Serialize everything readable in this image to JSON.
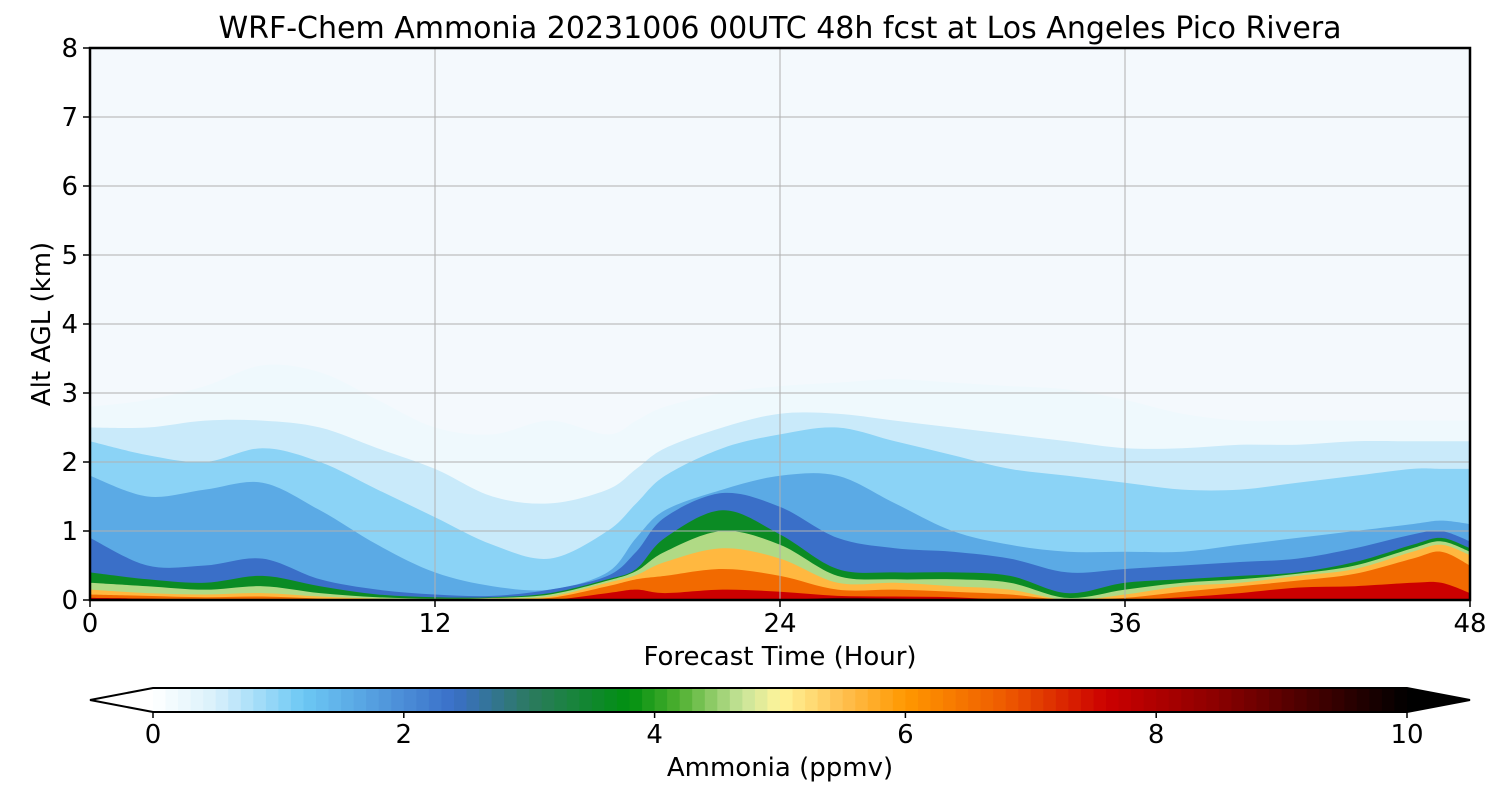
{
  "chart_data": {
    "type": "heatmap",
    "title": "WRF-Chem Ammonia  20231006 00UTC 48h fcst at Los Angeles Pico Rivera",
    "xlabel": "Forecast Time (Hour)",
    "ylabel": "Alt AGL (km)",
    "xlim": [
      0,
      48
    ],
    "ylim": [
      0,
      8
    ],
    "xticks": [
      "0",
      "12",
      "24",
      "36",
      "48"
    ],
    "yticks": [
      "0",
      "1",
      "2",
      "3",
      "4",
      "5",
      "6",
      "7",
      "8"
    ],
    "grid": true,
    "colorbar": {
      "label": "Ammonia  (ppmv)",
      "range": [
        0,
        10
      ],
      "ticks": [
        "0",
        "2",
        "4",
        "6",
        "8",
        "10"
      ],
      "extend": "both",
      "colors": [
        {
          "v": 0.0,
          "c": "#ffffff"
        },
        {
          "v": 0.5,
          "c": "#d8f0fb"
        },
        {
          "v": 1.2,
          "c": "#6cc8f4"
        },
        {
          "v": 2.4,
          "c": "#3a6fc8"
        },
        {
          "v": 3.0,
          "c": "#2c7a60"
        },
        {
          "v": 3.8,
          "c": "#009010"
        },
        {
          "v": 4.2,
          "c": "#4fb030"
        },
        {
          "v": 4.7,
          "c": "#c8e49a"
        },
        {
          "v": 5.0,
          "c": "#fff59a"
        },
        {
          "v": 5.5,
          "c": "#ffc050"
        },
        {
          "v": 6.0,
          "c": "#ff9800"
        },
        {
          "v": 6.8,
          "c": "#ee5a00"
        },
        {
          "v": 7.6,
          "c": "#cc0000"
        },
        {
          "v": 8.5,
          "c": "#8a0000"
        },
        {
          "v": 10.0,
          "c": "#000000"
        }
      ]
    },
    "contour_profiles": {
      "x_hours": [
        0,
        2,
        4,
        6,
        8,
        10,
        12,
        14,
        16,
        18,
        19,
        20,
        22,
        24,
        26,
        28,
        30,
        32,
        34,
        36,
        38,
        40,
        42,
        44,
        46,
        47,
        48
      ],
      "levels": [
        {
          "value": 0.2,
          "top_km": [
            2.8,
            2.9,
            3.1,
            3.4,
            3.3,
            2.9,
            2.5,
            2.4,
            2.6,
            2.4,
            2.6,
            2.8,
            3.0,
            3.1,
            3.15,
            3.2,
            3.15,
            3.1,
            3.05,
            2.9,
            2.7,
            2.6,
            2.6,
            2.6,
            2.6,
            2.6,
            2.6
          ]
        },
        {
          "value": 0.6,
          "top_km": [
            2.5,
            2.5,
            2.6,
            2.6,
            2.5,
            2.2,
            1.9,
            1.5,
            1.4,
            1.6,
            1.9,
            2.2,
            2.5,
            2.7,
            2.7,
            2.6,
            2.5,
            2.4,
            2.3,
            2.2,
            2.2,
            2.25,
            2.25,
            2.3,
            2.3,
            2.3,
            2.3
          ]
        },
        {
          "value": 1.0,
          "top_km": [
            2.3,
            2.1,
            2.0,
            2.2,
            2.0,
            1.6,
            1.2,
            0.8,
            0.6,
            1.0,
            1.4,
            1.8,
            2.2,
            2.4,
            2.5,
            2.3,
            2.1,
            1.9,
            1.8,
            1.7,
            1.6,
            1.6,
            1.7,
            1.8,
            1.9,
            1.9,
            1.9
          ]
        },
        {
          "value": 1.6,
          "top_km": [
            1.8,
            1.5,
            1.6,
            1.7,
            1.3,
            0.8,
            0.4,
            0.2,
            0.15,
            0.4,
            0.9,
            1.3,
            1.6,
            1.8,
            1.8,
            1.4,
            1.0,
            0.8,
            0.7,
            0.7,
            0.7,
            0.8,
            0.9,
            1.0,
            1.1,
            1.15,
            1.1
          ]
        },
        {
          "value": 2.4,
          "top_km": [
            0.9,
            0.5,
            0.5,
            0.6,
            0.3,
            0.15,
            0.08,
            0.06,
            0.15,
            0.35,
            0.7,
            1.2,
            1.55,
            1.35,
            0.9,
            0.75,
            0.7,
            0.6,
            0.4,
            0.45,
            0.5,
            0.55,
            0.6,
            0.75,
            0.95,
            1.0,
            0.85
          ]
        },
        {
          "value": 3.6,
          "top_km": [
            0.4,
            0.3,
            0.25,
            0.35,
            0.2,
            0.08,
            0.04,
            0.04,
            0.1,
            0.3,
            0.45,
            0.9,
            1.3,
            0.95,
            0.45,
            0.4,
            0.4,
            0.35,
            0.1,
            0.25,
            0.3,
            0.35,
            0.4,
            0.55,
            0.8,
            0.9,
            0.75
          ]
        },
        {
          "value": 4.6,
          "top_km": [
            0.25,
            0.2,
            0.15,
            0.2,
            0.1,
            0.04,
            0.02,
            0.03,
            0.08,
            0.28,
            0.42,
            0.7,
            1.0,
            0.8,
            0.35,
            0.3,
            0.3,
            0.25,
            0.03,
            0.15,
            0.25,
            0.3,
            0.38,
            0.5,
            0.75,
            0.85,
            0.7
          ]
        },
        {
          "value": 5.6,
          "top_km": [
            0.15,
            0.1,
            0.08,
            0.1,
            0.05,
            0.02,
            0.01,
            0.02,
            0.05,
            0.25,
            0.36,
            0.55,
            0.75,
            0.6,
            0.25,
            0.25,
            0.2,
            0.15,
            0.0,
            0.08,
            0.2,
            0.25,
            0.35,
            0.45,
            0.7,
            0.8,
            0.65
          ]
        },
        {
          "value": 6.6,
          "top_km": [
            0.08,
            0.06,
            0.04,
            0.05,
            0.02,
            0.0,
            0.0,
            0.0,
            0.03,
            0.2,
            0.3,
            0.35,
            0.45,
            0.35,
            0.15,
            0.15,
            0.12,
            0.08,
            0.0,
            0.03,
            0.12,
            0.2,
            0.28,
            0.38,
            0.6,
            0.7,
            0.5
          ]
        },
        {
          "value": 7.6,
          "top_km": [
            0.03,
            0.02,
            0.0,
            0.0,
            0.0,
            0.0,
            0.0,
            0.0,
            0.0,
            0.1,
            0.15,
            0.1,
            0.15,
            0.12,
            0.06,
            0.05,
            0.04,
            0.0,
            0.0,
            0.0,
            0.04,
            0.1,
            0.18,
            0.2,
            0.25,
            0.25,
            0.1
          ]
        },
        {
          "value": 9.0,
          "top_km": [
            0.0,
            0.0,
            0.0,
            0.0,
            0.0,
            0.0,
            0.0,
            0.0,
            0.0,
            0.0,
            0.0,
            0.0,
            0.0,
            0.0,
            0.03,
            0.02,
            0.0,
            0.0,
            0.0,
            0.0,
            0.0,
            0.0,
            0.0,
            0.0,
            0.0,
            0.0,
            0.0
          ]
        }
      ]
    }
  }
}
